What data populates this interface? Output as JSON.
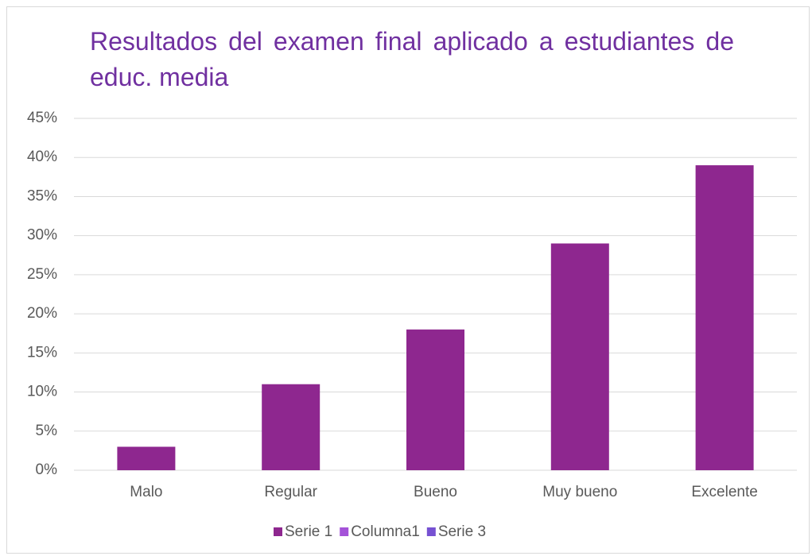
{
  "chart_data": {
    "type": "bar",
    "title": "Resultados del examen final aplicado a estudiantes de educ. media",
    "categories": [
      "Malo",
      "Regular",
      "Bueno",
      "Muy bueno",
      "Excelente"
    ],
    "series": [
      {
        "name": "Serie 1",
        "color": "#8e278f",
        "values": [
          3,
          11,
          18,
          29,
          39
        ]
      },
      {
        "name": "Columna1",
        "color": "#a452d8",
        "values": [
          null,
          null,
          null,
          null,
          null
        ]
      },
      {
        "name": "Serie 3",
        "color": "#7651d2",
        "values": [
          null,
          null,
          null,
          null,
          null
        ]
      }
    ],
    "ylim": [
      0,
      45
    ],
    "yticks": [
      {
        "value": 0,
        "label": "0%"
      },
      {
        "value": 5,
        "label": "5%"
      },
      {
        "value": 10,
        "label": "10%"
      },
      {
        "value": 15,
        "label": "15%"
      },
      {
        "value": 20,
        "label": "20%"
      },
      {
        "value": 25,
        "label": "25%"
      },
      {
        "value": 30,
        "label": "30%"
      },
      {
        "value": 35,
        "label": "35%"
      },
      {
        "value": 40,
        "label": "40%"
      },
      {
        "value": 45,
        "label": "45%"
      }
    ],
    "grid": true,
    "legend": "bottom"
  }
}
